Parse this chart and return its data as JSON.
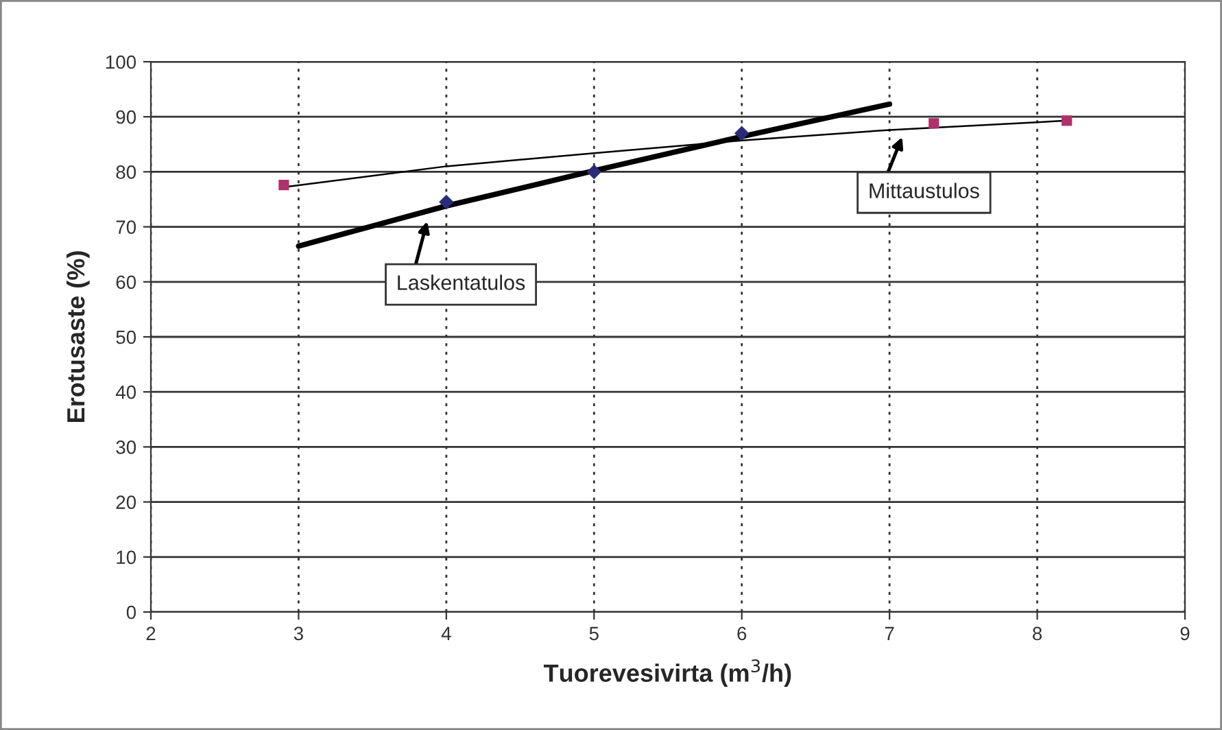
{
  "chart_data": {
    "type": "line",
    "xlabel": "Tuorevesivirta (m$^{3}$/h)",
    "ylabel": "Erotusaste (%)",
    "xlim": [
      2,
      9
    ],
    "xticks": [
      2,
      3,
      4,
      5,
      6,
      7,
      8,
      9
    ],
    "ylim": [
      0,
      100
    ],
    "yticks": [
      0,
      10,
      20,
      30,
      40,
      50,
      60,
      70,
      80,
      90,
      100
    ],
    "grid": true,
    "legend": false,
    "series": [
      {
        "x": [
          3,
          4,
          5,
          6,
          7
        ],
        "values": [
          66.5,
          73.8,
          80.2,
          86.4,
          92.3
        ],
        "color": "#000000",
        "marker": "none",
        "line_style": "solid"
      },
      {
        "type": "scatter",
        "x": [
          4,
          5,
          6
        ],
        "values": [
          74.5,
          80,
          87
        ],
        "color": "#2b2b7a",
        "marker": "diamond"
      },
      {
        "x": [
          2.9,
          4,
          5,
          6,
          7,
          8.2
        ],
        "values": [
          77.2,
          81,
          83.4,
          85.7,
          87.6,
          89.3
        ],
        "color": "#000000",
        "marker": "none",
        "line_style": "solid"
      },
      {
        "type": "scatter",
        "x": [
          2.9,
          7.3,
          8.2
        ],
        "values": [
          77.6,
          88.8,
          89.3
        ],
        "color": "#b0306a",
        "marker": "square"
      }
    ],
    "annotations": [
      {
        "text": "Laskentatulos",
        "x": 3.88,
        "y": 72
      },
      {
        "text": "Mittaustulos",
        "x": 7.1,
        "y": 87.3
      }
    ]
  }
}
